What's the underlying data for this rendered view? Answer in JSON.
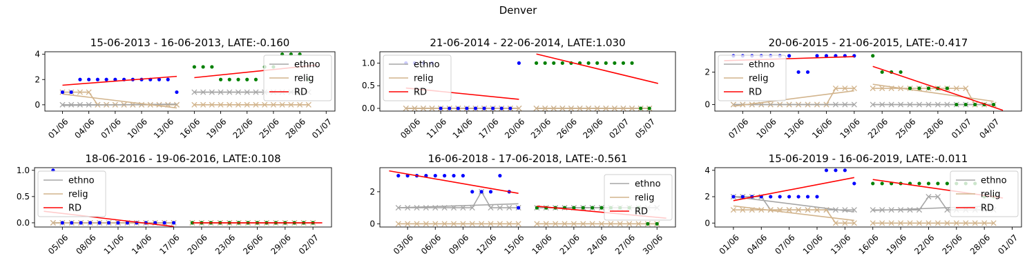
{
  "title": "Denver",
  "legend_labels": [
    "ethno",
    "relig",
    "RD"
  ],
  "colors": {
    "ethno": "#a6a6a6",
    "relig": "#d2b48c",
    "rd": "#ff0000",
    "pre_points": "#0000ff",
    "post_points": "#008000"
  },
  "chart_data": [
    {
      "type": "scatter",
      "title": "15-06-2013 - 16-06-2013, LATE:-0.160",
      "xlim": [
        "2013-05-30",
        "2013-07-02"
      ],
      "ylim": [
        -0.5,
        4.2
      ],
      "yticks": [
        0,
        2,
        4
      ],
      "xtick_labels": [
        "01/06",
        "04/06",
        "07/06",
        "10/06",
        "13/06",
        "16/06",
        "19/06",
        "22/06",
        "25/06",
        "28/06",
        "01/07"
      ],
      "legend_position": "upper right",
      "cutoff": "2013-06-15",
      "rd_pre": [
        [
          "2013-06-01",
          1.55
        ],
        [
          "2013-06-14",
          2.25
        ]
      ],
      "rd_post": [
        [
          "2013-06-16",
          2.15
        ],
        [
          "2013-06-30",
          3.15
        ]
      ],
      "outcome_pre": [
        1,
        1,
        2,
        2,
        2,
        2,
        2,
        2,
        2,
        2,
        2,
        2,
        2,
        1
      ],
      "outcome_post": [
        3,
        3,
        3,
        2,
        2,
        2,
        2,
        2,
        3,
        3,
        4,
        4,
        4,
        2
      ],
      "ethno_pre": [
        0,
        0,
        0,
        0,
        0,
        0,
        0,
        0,
        0,
        0,
        0,
        0,
        0,
        0
      ],
      "ethno_post": [
        1,
        1,
        1,
        1,
        1,
        1,
        1,
        1,
        1,
        1,
        1,
        1,
        1,
        1
      ],
      "relig_pre": [
        1,
        1,
        1,
        1,
        0,
        0,
        0,
        0,
        0,
        0,
        0,
        0,
        0,
        0
      ],
      "relig_post": [
        0,
        0,
        0,
        0,
        0,
        0,
        0,
        0,
        0,
        0,
        0,
        0,
        0,
        0
      ],
      "ethno_fit_pre": [
        -0.05,
        0.05
      ],
      "ethno_fit_post": [
        1.0,
        1.0
      ],
      "relig_fit_pre": [
        0.85,
        -0.25
      ],
      "relig_fit_post": [
        0.0,
        0.0
      ]
    },
    {
      "type": "scatter",
      "title": "21-06-2014 - 22-06-2014, LATE:1.030",
      "xlim": [
        "2014-06-04",
        "2014-07-08"
      ],
      "ylim": [
        -0.06,
        1.25
      ],
      "yticks": [
        0.0,
        0.5,
        1.0
      ],
      "xtick_labels": [
        "08/06",
        "11/06",
        "14/06",
        "17/06",
        "20/06",
        "23/06",
        "26/06",
        "29/06",
        "02/07",
        "05/07"
      ],
      "legend_position": "upper left",
      "cutoff": "2014-06-21",
      "rd_pre": [
        [
          "2014-06-07",
          0.45
        ],
        [
          "2014-06-20",
          0.2
        ]
      ],
      "rd_post": [
        [
          "2014-06-22",
          1.2
        ],
        [
          "2014-07-06",
          0.55
        ]
      ],
      "outcome_pre": [
        1,
        1,
        1,
        1,
        0,
        0,
        0,
        0,
        0,
        0,
        0,
        0,
        0,
        1
      ],
      "outcome_post": [
        1,
        1,
        1,
        1,
        1,
        1,
        1,
        1,
        1,
        1,
        1,
        1,
        0,
        0
      ],
      "ethno_pre": [
        0,
        0,
        0,
        0,
        0,
        0,
        0,
        0,
        0,
        0,
        0,
        0,
        0,
        0
      ],
      "ethno_post": [
        0,
        0,
        0,
        0,
        0,
        0,
        0,
        0,
        0,
        0,
        0,
        0,
        0,
        0
      ],
      "relig_pre": [
        0,
        0,
        0,
        0,
        0,
        0,
        0,
        0,
        0,
        0,
        0,
        0,
        0,
        0
      ],
      "relig_post": [
        0,
        0,
        0,
        0,
        0,
        0,
        0,
        0,
        0,
        0,
        0,
        0,
        0,
        0
      ],
      "ethno_fit_pre": [
        0.0,
        0.0
      ],
      "ethno_fit_post": [
        0.0,
        0.0
      ],
      "relig_fit_pre": [
        0.0,
        0.0
      ],
      "relig_fit_post": [
        0.0,
        0.0
      ]
    },
    {
      "type": "scatter",
      "title": "20-06-2015 - 21-06-2015, LATE:-0.417",
      "xlim": [
        "2015-06-04",
        "2015-07-07"
      ],
      "ylim": [
        -0.4,
        3.25
      ],
      "yticks": [
        0,
        2
      ],
      "xtick_labels": [
        "07/06",
        "10/06",
        "13/06",
        "16/06",
        "19/06",
        "22/06",
        "25/06",
        "28/06",
        "01/07",
        "04/07"
      ],
      "legend_position": "upper left",
      "cutoff": "2015-06-20",
      "rd_pre": [
        [
          "2015-06-05",
          2.7
        ],
        [
          "2015-06-19",
          2.95
        ]
      ],
      "rd_post": [
        [
          "2015-06-21",
          2.35
        ],
        [
          "2015-07-05",
          -0.35
        ]
      ],
      "outcome_pre": [
        3,
        3,
        3,
        3,
        3,
        3,
        3,
        2,
        2,
        3,
        3,
        3,
        3,
        3
      ],
      "outcome_post": [
        3,
        2,
        2,
        2,
        1,
        1,
        1,
        1,
        1,
        0,
        0,
        0,
        0,
        0
      ],
      "ethno_pre": [
        0,
        0,
        0,
        0,
        0,
        0,
        0,
        0,
        0,
        0,
        0,
        0,
        0,
        0
      ],
      "ethno_post": [
        0,
        0,
        0,
        0,
        0,
        0,
        0,
        0,
        0,
        0,
        0,
        0,
        0,
        0
      ],
      "relig_pre": [
        0,
        0,
        0,
        0,
        0,
        0,
        0,
        0,
        0,
        0,
        0,
        1,
        1,
        1
      ],
      "relig_post": [
        1,
        1,
        1,
        1,
        1,
        1,
        1,
        1,
        1,
        1,
        1,
        0,
        0,
        0
      ],
      "ethno_fit_pre": [
        0.0,
        0.0
      ],
      "ethno_fit_post": [
        0.0,
        0.0
      ],
      "relig_fit_pre": [
        -0.1,
        0.85
      ],
      "relig_fit_post": [
        1.25,
        0.2
      ]
    },
    {
      "type": "scatter",
      "title": "18-06-2016 - 19-06-2016, LATE:0.108",
      "xlim": [
        "2016-06-02",
        "2016-07-04"
      ],
      "ylim": [
        -0.08,
        1.05
      ],
      "yticks": [
        0.0,
        0.5,
        1.0
      ],
      "xtick_labels": [
        "05/06",
        "08/06",
        "11/06",
        "14/06",
        "17/06",
        "20/06",
        "23/06",
        "26/06",
        "29/06",
        "02/07"
      ],
      "legend_position": "upper left",
      "cutoff": "2016-06-18",
      "rd_pre": [
        [
          "2016-06-03",
          0.22
        ],
        [
          "2016-06-17",
          -0.07
        ]
      ],
      "rd_post": [
        [
          "2016-06-19",
          0.0
        ],
        [
          "2016-07-03",
          0.0
        ]
      ],
      "outcome_pre": [
        1,
        0,
        0,
        0,
        0,
        0,
        0,
        0,
        0,
        0,
        0,
        0,
        0,
        0
      ],
      "outcome_post": [
        0,
        0,
        0,
        0,
        0,
        0,
        0,
        0,
        0,
        0,
        0,
        0,
        0,
        0
      ],
      "ethno_pre": [
        0,
        0,
        0,
        0,
        0,
        0,
        0,
        0,
        0,
        0,
        0,
        0,
        0,
        0
      ],
      "ethno_post": [
        0,
        0,
        0,
        0,
        0,
        0,
        0,
        0,
        0,
        0,
        0,
        0,
        0,
        0
      ],
      "relig_pre": [
        0,
        0,
        0,
        0,
        0,
        0,
        0,
        0,
        0,
        0,
        0,
        0,
        0,
        0
      ],
      "relig_post": [
        0,
        0,
        0,
        0,
        0,
        0,
        0,
        0,
        0,
        0,
        0,
        0,
        0,
        0
      ],
      "ethno_fit_pre": [
        0.0,
        0.0
      ],
      "ethno_fit_post": [
        0.0,
        0.0
      ],
      "relig_fit_pre": [
        0.0,
        0.0
      ],
      "relig_fit_post": [
        0.0,
        0.0
      ]
    },
    {
      "type": "scatter",
      "title": "16-06-2018 - 17-06-2018, LATE:-0.561",
      "xlim": [
        "2018-05-31",
        "2018-07-02"
      ],
      "ylim": [
        -0.2,
        3.5
      ],
      "yticks": [
        0,
        2
      ],
      "xtick_labels": [
        "03/06",
        "06/06",
        "09/06",
        "12/06",
        "15/06",
        "18/06",
        "21/06",
        "24/06",
        "27/06",
        "30/06"
      ],
      "legend_position": "right",
      "cutoff": "2018-06-16",
      "rd_pre": [
        [
          "2018-06-01",
          3.3
        ],
        [
          "2018-06-15",
          1.9
        ]
      ],
      "rd_post": [
        [
          "2018-06-17",
          1.1
        ],
        [
          "2018-07-01",
          0.35
        ]
      ],
      "outcome_pre": [
        3,
        3,
        3,
        3,
        3,
        3,
        3,
        3,
        2,
        2,
        2,
        3,
        2,
        1
      ],
      "outcome_post": [
        1,
        1,
        1,
        1,
        1,
        1,
        1,
        1,
        1,
        1,
        1,
        1,
        0,
        0
      ],
      "ethno_pre": [
        1,
        1,
        1,
        1,
        1,
        1,
        1,
        1,
        1,
        2,
        1,
        1,
        1,
        1
      ],
      "ethno_post": [
        1,
        1,
        1,
        1,
        1,
        1,
        1,
        1,
        1,
        1,
        1,
        1,
        1,
        1
      ],
      "relig_pre": [
        0,
        0,
        0,
        0,
        0,
        0,
        0,
        0,
        0,
        0,
        0,
        0,
        0,
        0
      ],
      "relig_post": [
        0,
        0,
        0,
        0,
        0,
        0,
        0,
        0,
        0,
        0,
        0,
        0,
        0,
        0
      ],
      "ethno_fit_pre": [
        1.0,
        1.25
      ],
      "ethno_fit_post": [
        1.0,
        1.0
      ],
      "relig_fit_pre": [
        0.0,
        0.0
      ],
      "relig_fit_post": [
        0.0,
        0.0
      ]
    },
    {
      "type": "scatter",
      "title": "15-06-2019 - 16-06-2019, LATE:-0.011",
      "xlim": [
        "2019-05-30",
        "2019-07-02"
      ],
      "ylim": [
        -0.3,
        4.2
      ],
      "yticks": [
        0,
        2,
        4
      ],
      "xtick_labels": [
        "01/06",
        "04/06",
        "07/06",
        "10/06",
        "13/06",
        "16/06",
        "19/06",
        "22/06",
        "25/06",
        "28/06",
        "01/07"
      ],
      "legend_position": "upper right",
      "cutoff": "2019-06-15",
      "rd_pre": [
        [
          "2019-06-01",
          1.7
        ],
        [
          "2019-06-14",
          3.45
        ]
      ],
      "rd_post": [
        [
          "2019-06-16",
          3.3
        ],
        [
          "2019-06-30",
          1.9
        ]
      ],
      "outcome_pre": [
        2,
        2,
        2,
        2,
        2,
        2,
        2,
        2,
        2,
        2,
        4,
        4,
        4,
        3
      ],
      "outcome_post": [
        3,
        3,
        3,
        3,
        3,
        3,
        3,
        3,
        3,
        3,
        3,
        3,
        2,
        2
      ],
      "ethno_pre": [
        2,
        2,
        2,
        2,
        1,
        1,
        1,
        1,
        1,
        1,
        1,
        1,
        1,
        1
      ],
      "ethno_post": [
        1,
        1,
        1,
        1,
        1,
        1,
        2,
        2,
        1,
        1,
        1,
        1,
        1,
        1
      ],
      "relig_pre": [
        1,
        1,
        1,
        1,
        1,
        1,
        1,
        1,
        1,
        1,
        1,
        0,
        0,
        0
      ],
      "relig_post": [
        0,
        0,
        0,
        0,
        0,
        0,
        0,
        0,
        0,
        0,
        0,
        0,
        0,
        0
      ],
      "ethno_fit_pre": [
        2.0,
        0.85
      ],
      "ethno_fit_post": [
        0.95,
        1.3
      ],
      "relig_fit_pre": [
        1.3,
        0.2
      ],
      "relig_fit_post": [
        0.0,
        0.0
      ]
    }
  ]
}
